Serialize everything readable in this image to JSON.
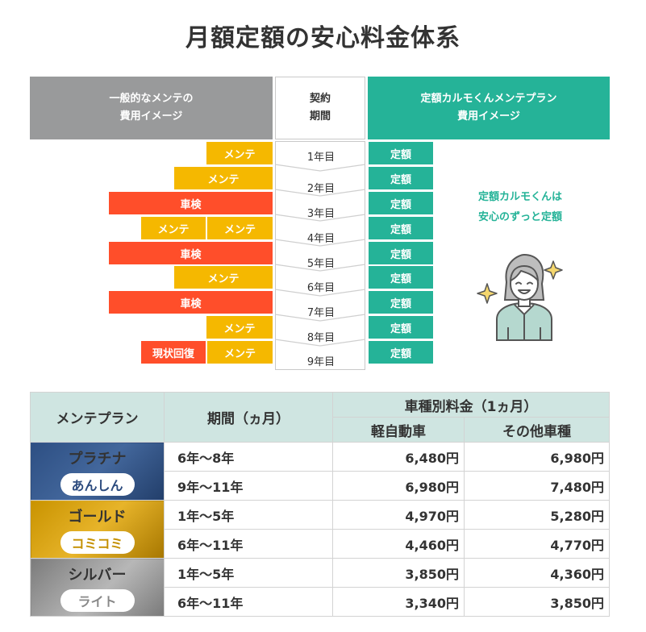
{
  "title": "月額定額の安心料金体系",
  "header": {
    "left_line1": "一般的なメンテの",
    "left_line2": "費用イメージ",
    "mid_line1": "契約",
    "mid_line2": "期間",
    "right_line1": "定額カルモくんメンテプラン",
    "right_line2": "費用イメージ"
  },
  "labels": {
    "maint": "メンテ",
    "inspect": "車検",
    "restore": "現状回復",
    "fixed": "定額"
  },
  "years": [
    "1年目",
    "2年目",
    "3年目",
    "4年目",
    "5年目",
    "6年目",
    "7年目",
    "8年目",
    "9年目"
  ],
  "plan_message_line1": "定額カルモくんは",
  "plan_message_line2": "安心のずっと定額",
  "icons": {
    "person": "smiling-woman-icon",
    "sparkle": "sparkle-icon"
  },
  "colors": {
    "maint": "#f5b800",
    "inspect": "#ff4e2a",
    "fixed": "#25b398",
    "gray": "#999a9b",
    "table_header": "#cfe5e1"
  },
  "table": {
    "col_plan": "メンテプラン",
    "col_period": "期間（ヵ月）",
    "col_price_group": "車種別料金（1ヵ月）",
    "col_kei": "軽自動車",
    "col_other": "その他車種",
    "tiers": [
      {
        "name": "プラチナ",
        "sub": "あんしん",
        "rows": [
          {
            "period": "6年～8年",
            "kei": "6,480円",
            "other": "6,980円"
          },
          {
            "period": "9年～11年",
            "kei": "6,980円",
            "other": "7,480円"
          }
        ]
      },
      {
        "name": "ゴールド",
        "sub": "コミコミ",
        "rows": [
          {
            "period": "1年～5年",
            "kei": "4,970円",
            "other": "5,280円"
          },
          {
            "period": "6年～11年",
            "kei": "4,460円",
            "other": "4,770円"
          }
        ]
      },
      {
        "name": "シルバー",
        "sub": "ライト",
        "rows": [
          {
            "period": "1年～5年",
            "kei": "3,850円",
            "other": "4,360円"
          },
          {
            "period": "6年～11年",
            "kei": "3,340円",
            "other": "3,850円"
          }
        ]
      }
    ]
  }
}
